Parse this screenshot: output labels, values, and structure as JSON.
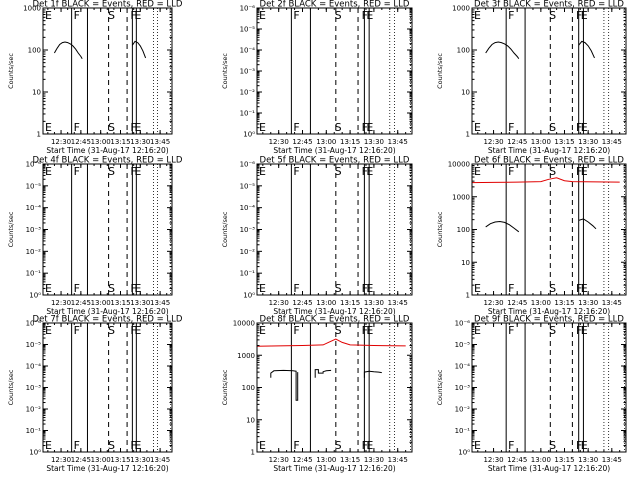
{
  "figure": {
    "x_tick_labels": [
      "12:30",
      "12:45",
      "13:00",
      "13:15",
      "13:30",
      "13:45"
    ],
    "x_axis_label": "Start Time (31-Aug-17 12:16:20)",
    "y_axis_label": "Counts/sec",
    "colors": {
      "events": "#000000",
      "lld": "#e00000",
      "axis": "#000000",
      "background": "#ffffff"
    },
    "marker_letters": [
      "E",
      "F",
      "S",
      "F",
      "E"
    ]
  },
  "chart_data": [
    {
      "panel": 1,
      "type": "line",
      "title": "Det 1f BLACK = Events, RED = LLD",
      "yscale": "log",
      "ylim": [
        1,
        1000
      ],
      "y_tick_labels": [
        "1",
        "10",
        "100",
        "1000"
      ],
      "xlim": [
        "12:16:20",
        "13:54:00"
      ],
      "series": [
        {
          "name": "Events",
          "color": "#000000",
          "segments": [
            {
              "x": [
                "12:25",
                "12:27",
                "12:29",
                "12:31",
                "12:33",
                "12:35",
                "12:37",
                "12:39",
                "12:41",
                "12:43",
                "12:45",
                "12:46"
              ],
              "y": [
                85,
                110,
                135,
                150,
                155,
                150,
                140,
                125,
                105,
                85,
                70,
                62
              ]
            },
            {
              "x": [
                "13:24",
                "13:26",
                "13:28",
                "13:30",
                "13:32",
                "13:34"
              ],
              "y": [
                130,
                160,
                150,
                125,
                95,
                65
              ]
            }
          ]
        }
      ]
    },
    {
      "panel": 2,
      "type": "line",
      "title": "Det 2f BLACK = Events, RED = LLD",
      "yscale": "log",
      "ylim": [
        1,
        1000000
      ],
      "y_tick_labels": [
        "10⁰",
        "10⁻¹",
        "10⁻²",
        "10⁻³",
        "10⁻⁴",
        "10⁻⁵",
        "10⁻⁶"
      ],
      "xlim": [
        "12:16:20",
        "13:54:00"
      ],
      "series": []
    },
    {
      "panel": 3,
      "type": "line",
      "title": "Det 3f BLACK = Events, RED = LLD",
      "yscale": "log",
      "ylim": [
        1,
        1000
      ],
      "y_tick_labels": [
        "1",
        "10",
        "100",
        "1000"
      ],
      "xlim": [
        "12:16:20",
        "13:54:00"
      ],
      "series": [
        {
          "name": "Events",
          "color": "#000000",
          "segments": [
            {
              "x": [
                "12:25",
                "12:27",
                "12:29",
                "12:31",
                "12:33",
                "12:35",
                "12:37",
                "12:39",
                "12:41",
                "12:43",
                "12:45",
                "12:46"
              ],
              "y": [
                85,
                110,
                135,
                150,
                155,
                150,
                140,
                125,
                105,
                85,
                70,
                62
              ]
            },
            {
              "x": [
                "13:24",
                "13:26",
                "13:28",
                "13:30",
                "13:32",
                "13:34"
              ],
              "y": [
                130,
                160,
                150,
                125,
                95,
                65
              ]
            }
          ]
        }
      ]
    },
    {
      "panel": 4,
      "type": "line",
      "title": "Det 4f BLACK = Events, RED = LLD",
      "yscale": "log",
      "ylim": [
        1,
        1000000
      ],
      "y_tick_labels": [
        "10⁰",
        "10⁻¹",
        "10⁻²",
        "10⁻³",
        "10⁻⁴",
        "10⁻⁵",
        "10⁻⁶"
      ],
      "xlim": [
        "12:16:20",
        "13:54:00"
      ],
      "series": []
    },
    {
      "panel": 5,
      "type": "line",
      "title": "Det 5f BLACK = Events, RED = LLD",
      "yscale": "log",
      "ylim": [
        1,
        1000000
      ],
      "y_tick_labels": [
        "10⁰",
        "10⁻¹",
        "10⁻²",
        "10⁻³",
        "10⁻⁴",
        "10⁻⁵",
        "10⁻⁶"
      ],
      "xlim": [
        "12:16:20",
        "13:54:00"
      ],
      "series": []
    },
    {
      "panel": 6,
      "type": "line",
      "title": "Det 6f BLACK = Events, RED = LLD",
      "yscale": "log",
      "ylim": [
        1,
        10000
      ],
      "y_tick_labels": [
        "1",
        "10",
        "100",
        "1000",
        "10000"
      ],
      "xlim": [
        "12:16:20",
        "13:54:00"
      ],
      "series": [
        {
          "name": "LLD",
          "color": "#e00000",
          "segments": [
            {
              "x": [
                "12:16",
                "12:30",
                "12:45",
                "13:00",
                "13:05",
                "13:10",
                "13:15",
                "13:20",
                "13:35",
                "13:50"
              ],
              "y": [
                2700,
                2750,
                2800,
                2900,
                3400,
                3800,
                3100,
                2900,
                2850,
                2800
              ]
            }
          ]
        },
        {
          "name": "Events",
          "color": "#000000",
          "segments": [
            {
              "x": [
                "12:25",
                "12:28",
                "12:31",
                "12:34",
                "12:37",
                "12:40",
                "12:43",
                "12:46"
              ],
              "y": [
                120,
                150,
                170,
                175,
                165,
                140,
                110,
                85
              ]
            },
            {
              "x": [
                "13:24",
                "13:27",
                "13:30",
                "13:33",
                "13:35"
              ],
              "y": [
                190,
                210,
                170,
                130,
                105
              ]
            }
          ]
        }
      ]
    },
    {
      "panel": 7,
      "type": "line",
      "title": "Det 7f BLACK = Events, RED = LLD",
      "yscale": "log",
      "ylim": [
        1,
        1000000
      ],
      "y_tick_labels": [
        "10⁰",
        "10⁻¹",
        "10⁻²",
        "10⁻³",
        "10⁻⁴",
        "10⁻⁵",
        "10⁻⁶"
      ],
      "xlim": [
        "12:16:20",
        "13:54:00"
      ],
      "series": []
    },
    {
      "panel": 8,
      "type": "line",
      "title": "Det 8f BLACK = Events, RED = LLD",
      "yscale": "log",
      "ylim": [
        1,
        10000
      ],
      "y_tick_labels": [
        "1",
        "10",
        "100",
        "1000",
        "10000"
      ],
      "xlim": [
        "12:16:20",
        "13:54:00"
      ],
      "series": [
        {
          "name": "LLD",
          "color": "#e00000",
          "segments": [
            {
              "x": [
                "12:16",
                "12:30",
                "12:45",
                "12:58",
                "13:02",
                "13:06",
                "13:10",
                "13:15",
                "13:30",
                "13:50"
              ],
              "y": [
                1900,
                1950,
                2000,
                2100,
                2600,
                3200,
                2500,
                2100,
                2000,
                1950
              ]
            }
          ]
        },
        {
          "name": "Events",
          "color": "#000000",
          "segments": [
            {
              "x": [
                "12:25",
                "12:25",
                "12:27",
                "12:33",
                "12:39",
                "12:41",
                "12:41",
                "12:42",
                "12:42"
              ],
              "y": [
                200,
                280,
                330,
                340,
                330,
                320,
                40,
                40,
                300
              ]
            },
            {
              "x": [
                "12:53",
                "12:53",
                "12:55",
                "12:55",
                "12:58",
                "12:58",
                "13:00",
                "13:03"
              ],
              "y": [
                200,
                360,
                360,
                280,
                280,
                310,
                330,
                340
              ]
            },
            {
              "x": [
                "13:24",
                "13:24",
                "13:27",
                "13:30",
                "13:33",
                "13:35"
              ],
              "y": [
                200,
                300,
                320,
                310,
                300,
                290
              ]
            }
          ]
        }
      ]
    },
    {
      "panel": 9,
      "type": "line",
      "title": "Det 9f BLACK = Events, RED = LLD",
      "yscale": "log",
      "ylim": [
        1,
        1000000
      ],
      "y_tick_labels": [
        "10⁰",
        "10⁻¹",
        "10⁻²",
        "10⁻³",
        "10⁻⁴",
        "10⁻⁵",
        "10⁻⁶"
      ],
      "xlim": [
        "12:16:20",
        "13:54:00"
      ],
      "series": []
    }
  ]
}
